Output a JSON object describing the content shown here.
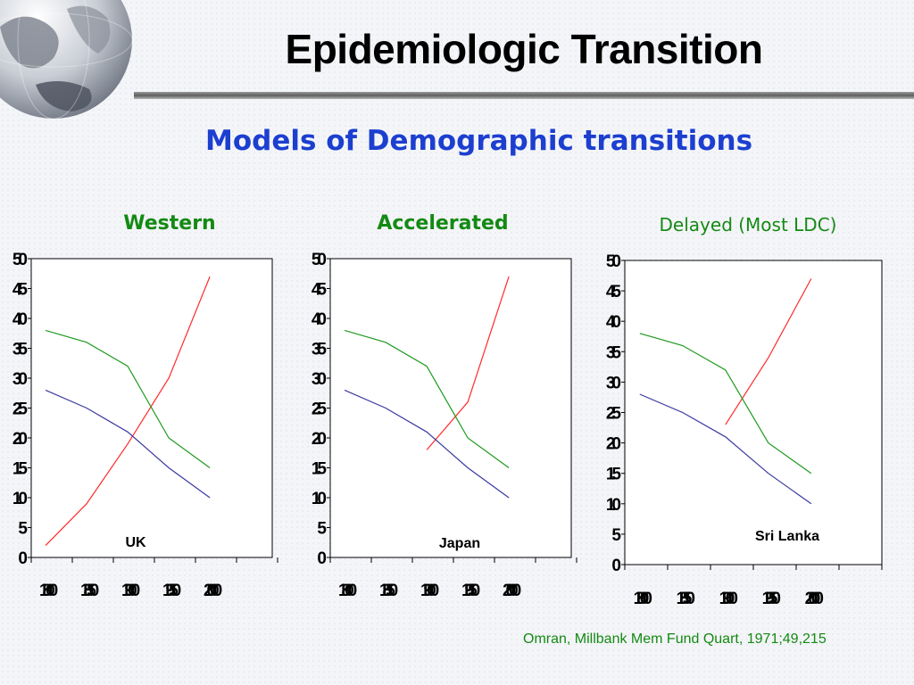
{
  "title": "Epidemiologic Transition",
  "subtitle": "Models of Demographic transitions",
  "citation": "Omran, Millbank Mem Fund Quart, 1971;49,215",
  "colors": {
    "series_red": "#ff2a2a",
    "series_green": "#1f9a1f",
    "series_blue": "#3a3aa0",
    "subtitle": "#1c3fd0",
    "model_title": "#148a14"
  },
  "icons": [
    "globe-icon"
  ],
  "chart_data": [
    {
      "type": "line",
      "title": "Western",
      "annotation": "UK",
      "x": [
        1800,
        1850,
        1900,
        1950,
        2000
      ],
      "x_tick_labels": [
        "1800",
        "1850",
        "1900",
        "1950",
        "2000"
      ],
      "y_tick_labels": [
        "0",
        "5",
        "10",
        "15",
        "20",
        "25",
        "30",
        "35",
        "40",
        "45",
        "50"
      ],
      "ylim": [
        0,
        50
      ],
      "grid": false,
      "series": [
        {
          "color": "#ff2a2a",
          "points": [
            [
              1800,
              2
            ],
            [
              1850,
              9
            ],
            [
              1900,
              19
            ],
            [
              1950,
              30
            ],
            [
              2000,
              47
            ]
          ]
        },
        {
          "color": "#1f9a1f",
          "points": [
            [
              1800,
              38
            ],
            [
              1850,
              36
            ],
            [
              1900,
              32
            ],
            [
              1950,
              20
            ],
            [
              2000,
              15
            ]
          ]
        },
        {
          "color": "#3a3aa0",
          "points": [
            [
              1800,
              28
            ],
            [
              1850,
              25
            ],
            [
              1900,
              21
            ],
            [
              1950,
              15
            ],
            [
              2000,
              10
            ]
          ]
        }
      ]
    },
    {
      "type": "line",
      "title": "Accelerated",
      "annotation": "Japan",
      "x": [
        1800,
        1850,
        1900,
        1950,
        2000
      ],
      "x_tick_labels": [
        "1800",
        "1850",
        "1900",
        "1950",
        "2000"
      ],
      "y_tick_labels": [
        "0",
        "5",
        "10",
        "15",
        "20",
        "25",
        "30",
        "35",
        "40",
        "45",
        "50"
      ],
      "ylim": [
        0,
        50
      ],
      "grid": false,
      "series": [
        {
          "color": "#ff2a2a",
          "points": [
            [
              1900,
              18
            ],
            [
              1950,
              26
            ],
            [
              2000,
              47
            ]
          ]
        },
        {
          "color": "#1f9a1f",
          "points": [
            [
              1800,
              38
            ],
            [
              1850,
              36
            ],
            [
              1900,
              32
            ],
            [
              1950,
              20
            ],
            [
              2000,
              15
            ]
          ]
        },
        {
          "color": "#3a3aa0",
          "points": [
            [
              1800,
              28
            ],
            [
              1850,
              25
            ],
            [
              1900,
              21
            ],
            [
              1950,
              15
            ],
            [
              2000,
              10
            ]
          ]
        }
      ]
    },
    {
      "type": "line",
      "title": "Delayed (Most LDC)",
      "annotation": "Sri Lanka",
      "x": [
        1800,
        1850,
        1900,
        1950,
        2000
      ],
      "x_tick_labels": [
        "1800",
        "1850",
        "1900",
        "1950",
        "2000"
      ],
      "y_tick_labels": [
        "0",
        "5",
        "10",
        "15",
        "20",
        "25",
        "30",
        "35",
        "40",
        "45",
        "50"
      ],
      "ylim": [
        0,
        50
      ],
      "grid": false,
      "series": [
        {
          "color": "#ff2a2a",
          "points": [
            [
              1900,
              23
            ],
            [
              1950,
              34
            ],
            [
              2000,
              47
            ]
          ]
        },
        {
          "color": "#1f9a1f",
          "points": [
            [
              1800,
              38
            ],
            [
              1850,
              36
            ],
            [
              1900,
              32
            ],
            [
              1950,
              20
            ],
            [
              2000,
              15
            ]
          ]
        },
        {
          "color": "#3a3aa0",
          "points": [
            [
              1800,
              28
            ],
            [
              1850,
              25
            ],
            [
              1900,
              21
            ],
            [
              1950,
              15
            ],
            [
              2000,
              10
            ]
          ]
        }
      ]
    }
  ]
}
